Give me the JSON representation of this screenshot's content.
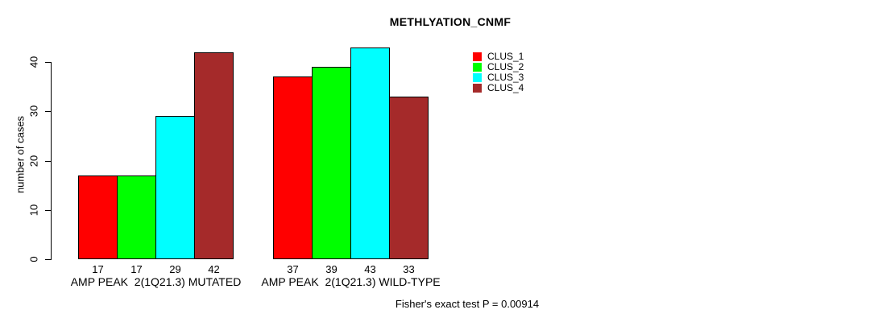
{
  "chart_data": {
    "type": "bar",
    "title": "METHLYATION_CNMF",
    "xlabel": "",
    "ylabel": "number of cases",
    "ylim": [
      0,
      43
    ],
    "y_ticks": [
      0,
      10,
      20,
      30,
      40
    ],
    "grid": false,
    "legend_position": "top-right",
    "bar_value_labels": true,
    "categories": [
      "AMP PEAK  2(1Q21.3) MUTATED",
      "AMP PEAK  2(1Q21.3) WILD-TYPE"
    ],
    "series": [
      {
        "name": "CLUS_1",
        "color": "#FF0000",
        "values": [
          17,
          37
        ]
      },
      {
        "name": "CLUS_2",
        "color": "#00FF00",
        "values": [
          17,
          39
        ]
      },
      {
        "name": "CLUS_3",
        "color": "#00FFFF",
        "values": [
          29,
          43
        ]
      },
      {
        "name": "CLUS_4",
        "color": "#A52A2A",
        "values": [
          42,
          33
        ]
      }
    ]
  },
  "footer": {
    "text": "Fisher's exact test P = 0.00914"
  }
}
